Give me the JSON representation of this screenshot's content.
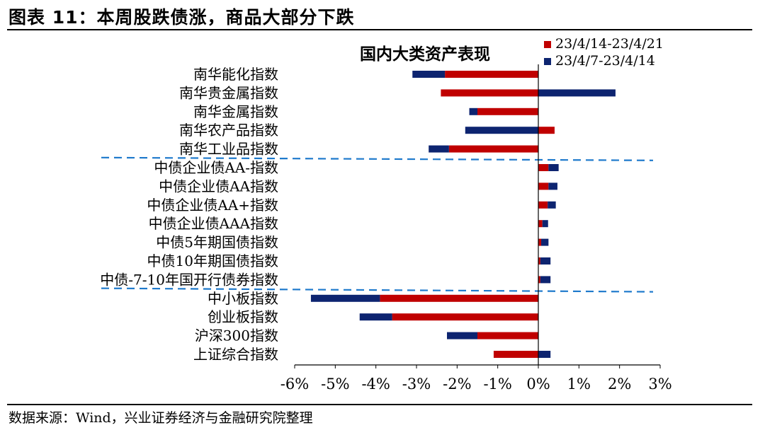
{
  "figure": {
    "title": "图表 11：本周股跌债涨，商品大部分下跌",
    "source": "数据来源：Wind，兴业证券经济与金融研究院整理"
  },
  "colors": {
    "series_current": "#c00000",
    "series_previous": "#0d2470",
    "divider": "#1f7acc"
  },
  "chart_data": {
    "type": "bar",
    "orientation": "horizontal",
    "stacked": true,
    "title": "国内大类资产表现",
    "categories": [
      "南华能化指数",
      "南华贵金属指数",
      "南华金属指数",
      "南华农产品指数",
      "南华工业品指数",
      "中债企业债AA-指数",
      "中债企业债AA指数",
      "中债企业债AA+指数",
      "中债企业债AAA指数",
      "中债5年期国债指数",
      "中债10年期国债指数",
      "中债-7-10年国开行债券指数",
      "中小板指数",
      "创业板指数",
      "沪深300指数",
      "上证综合指数"
    ],
    "series": [
      {
        "name": "23/4/14-23/4/21",
        "values": [
          -2.3,
          -2.4,
          -1.5,
          0.4,
          -2.2,
          0.25,
          0.25,
          0.23,
          0.1,
          0.07,
          0.05,
          0.05,
          -3.9,
          -3.6,
          -1.5,
          -1.1
        ]
      },
      {
        "name": "23/4/7-23/4/14",
        "values": [
          -0.8,
          1.9,
          -0.2,
          -1.8,
          -0.5,
          0.25,
          0.22,
          0.2,
          0.14,
          0.18,
          0.25,
          0.25,
          -1.7,
          -0.8,
          -0.75,
          0.3
        ]
      }
    ],
    "xlim": [
      -6,
      3
    ],
    "xticks": [
      "-6%",
      "-5%",
      "-4%",
      "-3%",
      "-2%",
      "-1%",
      "0%",
      "1%",
      "2%",
      "3%"
    ],
    "legend_position": "top-right",
    "grid": false,
    "group_dividers_after": [
      "南华工业品指数",
      "中债-7-10年国开行债券指数"
    ]
  }
}
